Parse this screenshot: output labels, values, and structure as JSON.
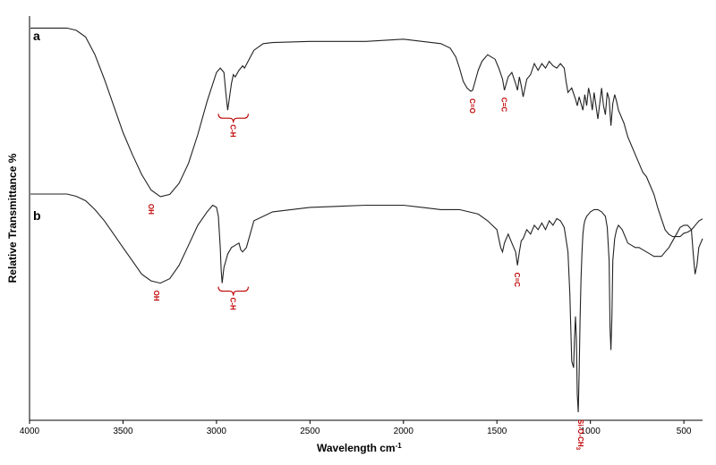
{
  "chart_data": {
    "type": "line",
    "xlabel": "Wavelength cm",
    "xlabel_superscript": "-1",
    "ylabel": "Relative Transmittance %",
    "xlim": [
      4000,
      400
    ],
    "x_reversed": true,
    "x_ticks": [
      4000,
      3500,
      3000,
      2500,
      2000,
      1500,
      1000,
      500
    ],
    "ylim": [
      0,
      100
    ],
    "grid": false,
    "annotation_color": "#c00000",
    "line_color": "#222222",
    "series": [
      {
        "panel": "a",
        "x": [
          3995,
          3900,
          3800,
          3750,
          3700,
          3650,
          3600,
          3550,
          3500,
          3450,
          3400,
          3350,
          3300,
          3250,
          3200,
          3150,
          3100,
          3050,
          3000,
          2980,
          2960,
          2950,
          2940,
          2930,
          2920,
          2910,
          2900,
          2880,
          2860,
          2850,
          2800,
          2750,
          2700,
          2500,
          2200,
          2000,
          1900,
          1800,
          1750,
          1720,
          1700,
          1680,
          1660,
          1640,
          1630,
          1620,
          1600,
          1580,
          1550,
          1510,
          1490,
          1470,
          1460,
          1450,
          1440,
          1420,
          1400,
          1390,
          1380,
          1370,
          1360,
          1340,
          1320,
          1300,
          1280,
          1260,
          1240,
          1220,
          1200,
          1180,
          1160,
          1140,
          1130,
          1120,
          1100,
          1080,
          1070,
          1060,
          1050,
          1040,
          1030,
          1020,
          1010,
          1000,
          990,
          980,
          970,
          960,
          950,
          940,
          930,
          920,
          910,
          900,
          890,
          880,
          870,
          860,
          850,
          820,
          800,
          780,
          760,
          740,
          720,
          700,
          680,
          660,
          640,
          620,
          600,
          580,
          560,
          540,
          520,
          500,
          480,
          460,
          450,
          440,
          430,
          420,
          400
        ],
        "y": [
          97,
          97,
          97,
          96,
          93,
          85,
          74,
          62,
          50,
          40,
          31,
          24,
          21,
          22,
          27,
          36,
          49,
          64,
          77,
          79,
          77,
          68,
          60,
          66,
          72,
          76,
          75,
          78,
          80,
          79,
          87,
          90,
          90.5,
          91,
          91,
          92,
          91,
          90,
          88,
          84,
          79,
          73,
          70,
          68.5,
          69,
          72,
          78,
          82,
          85,
          83,
          79,
          74,
          69,
          72,
          75,
          77,
          72,
          69,
          75,
          71,
          66,
          74,
          76,
          81,
          78,
          81,
          79,
          82,
          80,
          79,
          81,
          79,
          73,
          68,
          70,
          65,
          62,
          66,
          63,
          60,
          67,
          62,
          70,
          66,
          60,
          68,
          62,
          56,
          63,
          70,
          62,
          58,
          68,
          65,
          53,
          63,
          67,
          64,
          60,
          54,
          48,
          44,
          40,
          36,
          32,
          30,
          26,
          22,
          16,
          11,
          6,
          4,
          3,
          3,
          3,
          4.5,
          5,
          6,
          7,
          8,
          9,
          10,
          11
        ]
      },
      {
        "panel": "b",
        "x": [
          3995,
          3800,
          3750,
          3700,
          3650,
          3600,
          3550,
          3500,
          3450,
          3400,
          3350,
          3300,
          3250,
          3200,
          3150,
          3100,
          3050,
          3020,
          3000,
          2990,
          2980,
          2975,
          2970,
          2960,
          2940,
          2920,
          2900,
          2880,
          2870,
          2860,
          2840,
          2820,
          2800,
          2700,
          2500,
          2200,
          2000,
          1900,
          1800,
          1700,
          1600,
          1550,
          1500,
          1480,
          1470,
          1460,
          1440,
          1420,
          1400,
          1390,
          1380,
          1370,
          1360,
          1340,
          1320,
          1300,
          1280,
          1260,
          1240,
          1220,
          1200,
          1180,
          1160,
          1140,
          1120,
          1110,
          1100,
          1090,
          1085,
          1080,
          1075,
          1070,
          1065,
          1060,
          1055,
          1050,
          1045,
          1040,
          1035,
          1030,
          1020,
          1000,
          980,
          960,
          940,
          920,
          910,
          900,
          895,
          890,
          885,
          880,
          870,
          860,
          850,
          830,
          810,
          800,
          780,
          760,
          740,
          720,
          700,
          680,
          660,
          640,
          620,
          600,
          580,
          560,
          540,
          520,
          500,
          480,
          460,
          450,
          440,
          430,
          420,
          400
        ],
        "y": [
          100,
          100,
          99,
          97,
          93,
          88,
          82,
          76,
          70,
          64,
          61,
          60,
          62,
          68,
          77,
          86,
          92,
          95,
          94,
          90,
          76,
          66,
          60,
          67,
          73,
          76,
          77,
          78,
          75,
          74,
          76,
          82,
          88,
          92,
          94,
          95,
          95,
          94,
          93,
          93,
          91,
          88,
          84,
          76,
          74,
          78,
          82,
          78,
          74,
          68,
          74,
          79,
          80,
          84,
          82,
          86,
          84,
          87,
          84,
          88,
          86,
          89,
          88,
          85,
          74,
          55,
          25,
          22,
          35,
          45,
          35,
          10,
          2,
          20,
          45,
          62,
          74,
          82,
          86,
          88,
          90,
          92,
          93,
          93,
          92,
          90,
          85,
          70,
          40,
          30,
          45,
          70,
          80,
          84,
          86,
          84,
          80,
          78,
          77,
          76,
          76,
          75,
          74,
          73,
          72,
          72,
          72,
          74,
          76,
          79,
          82,
          85,
          86,
          86,
          84,
          73,
          64,
          68,
          76,
          80
        ]
      }
    ],
    "panels": [
      {
        "label": "a",
        "annotations": [
          {
            "text": "OH",
            "x": 3350
          },
          {
            "text": "C-H",
            "x": 2920,
            "brace_x": [
              2990,
              2830
            ]
          },
          {
            "text": "C=O",
            "x": 1630
          },
          {
            "text": "C=C",
            "x": 1460
          }
        ]
      },
      {
        "label": "b",
        "annotations": [
          {
            "text": "OH",
            "x": 3320
          },
          {
            "text": "C-H",
            "x": 2920,
            "brace_x": [
              2990,
              2830
            ]
          },
          {
            "text": "C=C",
            "x": 1390
          },
          {
            "text": "Si-O-CH",
            "subscript": "3",
            "x": 1050
          }
        ]
      }
    ]
  }
}
